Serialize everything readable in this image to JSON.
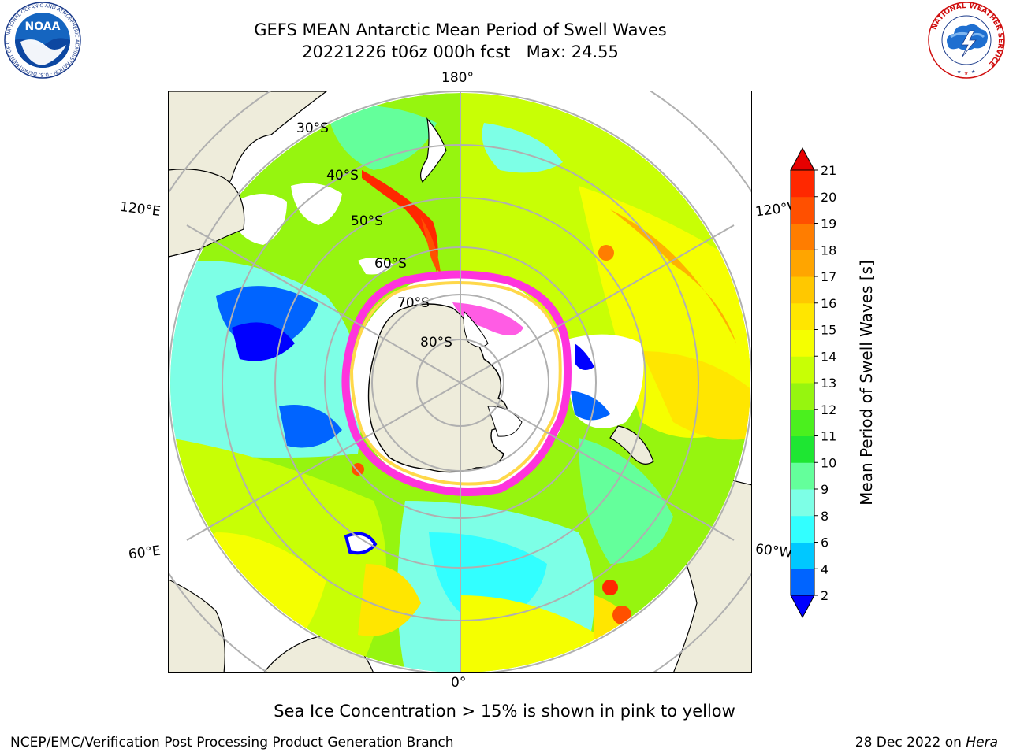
{
  "title": {
    "line1": "GEFS MEAN Antarctic Mean Period of Swell Waves",
    "line2": "20221226 t06z 000h fcst   Max: 24.55"
  },
  "logos": {
    "left": "NOAA",
    "left_ring_text": "NATIONAL OCEANIC AND ATMOSPHERIC ADMINISTRATION · U.S. DEPARTMENT OF COMMERCE",
    "right_ring_text": "NATIONAL WEATHER SERVICE"
  },
  "map": {
    "projection": "south-polar-stereographic",
    "lon_labels": {
      "top": "180°",
      "bottom": "0°",
      "left_upper": "120°E",
      "left_lower": "60°E",
      "right_upper": "120°W",
      "right_lower": "60°W"
    },
    "lat_labels": [
      "30°S",
      "40°S",
      "50°S",
      "60°S",
      "70°S",
      "80°S"
    ],
    "colors": {
      "land": "#eeecdb",
      "ice_pink": "#ff33dd",
      "ice_yellow": "#ffd84a",
      "grid": "#b0b0b0"
    }
  },
  "colorbar": {
    "label": "Mean Period of Swell Waves [s]",
    "ticks": [
      "2",
      "4",
      "6",
      "8",
      "9",
      "10",
      "11",
      "12",
      "13",
      "14",
      "15",
      "16",
      "17",
      "18",
      "19",
      "20",
      "21"
    ],
    "colors": [
      "#0000ff",
      "#0064ff",
      "#00c8ff",
      "#32ffff",
      "#7dffe6",
      "#64ff9b",
      "#1ee632",
      "#4bf01e",
      "#96f50f",
      "#c8ff05",
      "#f5ff00",
      "#ffe600",
      "#ffc800",
      "#ffa500",
      "#ff7d00",
      "#ff5000",
      "#ff2800",
      "#e60000"
    ]
  },
  "footnote": "Sea Ice Concentration > 15% is shown in pink to yellow",
  "credit": "NCEP/EMC/Verification Post Processing Product Generation Branch",
  "date_credit": {
    "text": "28 Dec 2022 on ",
    "machine": "Hera"
  }
}
